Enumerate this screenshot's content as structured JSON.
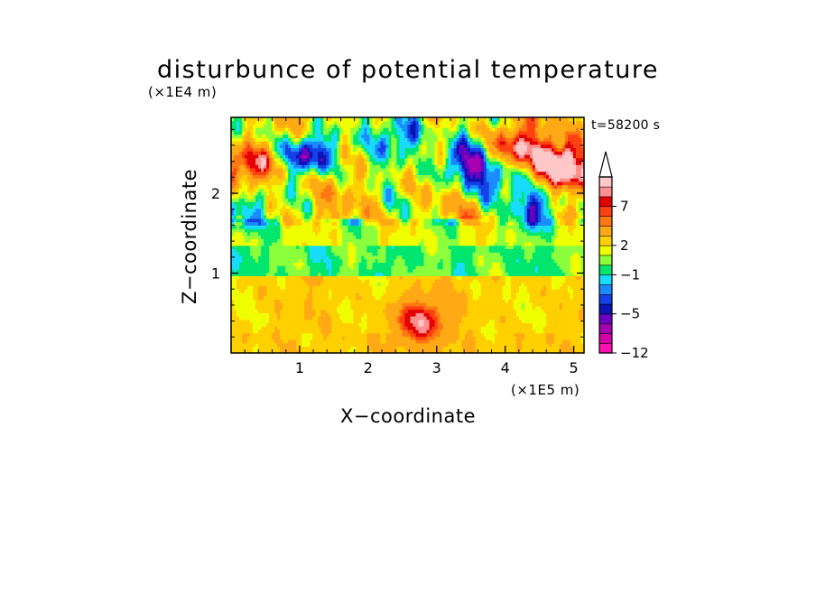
{
  "chart_data": {
    "type": "heatmap",
    "title": "disturbunce of potential temperature",
    "xlabel": "X−coordinate",
    "ylabel": "Z−coordinate",
    "x_unit": "(×1E5 m)",
    "y_unit": "(×1E4 m)",
    "time_label": "t=58200 s",
    "x_range": [
      0,
      5.15
    ],
    "y_range": [
      0,
      2.95
    ],
    "x_ticks": [
      {
        "value": 1,
        "label": "1"
      },
      {
        "value": 2,
        "label": "2"
      },
      {
        "value": 3,
        "label": "3"
      },
      {
        "value": 4,
        "label": "4"
      },
      {
        "value": 5,
        "label": "5"
      }
    ],
    "y_ticks": [
      {
        "value": 1,
        "label": "1"
      },
      {
        "value": 2,
        "label": "2"
      }
    ],
    "grid": false,
    "colorbar": {
      "placement": "right",
      "levels": [
        -12,
        -10,
        -8,
        -6,
        -5,
        -4,
        -3,
        -2,
        -1,
        0,
        1,
        2,
        3,
        5,
        6,
        7,
        8,
        9,
        10
      ],
      "colors": [
        "#ff10b0",
        "#d400a8",
        "#a800b0",
        "#6a00c0",
        "#0a14b4",
        "#1440e8",
        "#1a8cff",
        "#18dcff",
        "#00e66e",
        "#8cff3c",
        "#f0ff00",
        "#ffd000",
        "#ffaa14",
        "#ff7814",
        "#ff4010",
        "#e40000",
        "#ff9090",
        "#ffc8c8"
      ],
      "labels": [
        {
          "value": -12,
          "text": "−12"
        },
        {
          "value": -5,
          "text": "−5"
        },
        {
          "value": -1,
          "text": "−1"
        },
        {
          "value": 2,
          "text": "2"
        },
        {
          "value": 7,
          "text": "7"
        }
      ],
      "extend_max": true
    },
    "field": {
      "nx": 130,
      "nz": 70,
      "features": [
        {
          "kind": "warm_anomaly",
          "x": 0.3,
          "z": 2.35,
          "amplitude": 7,
          "label": "warm core upper left"
        },
        {
          "kind": "warm_anomaly",
          "x": 4.1,
          "z": 2.55,
          "amplitude": 7,
          "label": "warm core upper right-center"
        },
        {
          "kind": "warm_anomaly",
          "x": 4.85,
          "z": 2.35,
          "amplitude": 9,
          "label": "warm core upper right"
        },
        {
          "kind": "warm_anomaly",
          "x": 2.75,
          "z": 0.4,
          "amplitude": 6,
          "label": "warm plume near surface"
        },
        {
          "kind": "cold_anomaly",
          "x": 1.15,
          "z": 2.5,
          "amplitude": -9,
          "label": "cold core upper left-center"
        },
        {
          "kind": "cold_anomaly",
          "x": 3.35,
          "z": 2.4,
          "amplitude": -7,
          "label": "cold core upper center"
        },
        {
          "kind": "cold_anomaly",
          "x": 2.55,
          "z": 2.75,
          "amplitude": -6,
          "label": "cold core top center"
        },
        {
          "kind": "cold_anomaly",
          "x": 0.05,
          "z": 1.8,
          "amplitude": -5,
          "label": "cold patch left edge"
        },
        {
          "kind": "cold_anomaly",
          "x": 4.5,
          "z": 1.85,
          "amplitude": -5,
          "label": "cold patch right"
        },
        {
          "kind": "cold_anomaly",
          "x": 3.75,
          "z": 2.2,
          "amplitude": -5,
          "label": "cold patch right-center"
        }
      ]
    }
  }
}
